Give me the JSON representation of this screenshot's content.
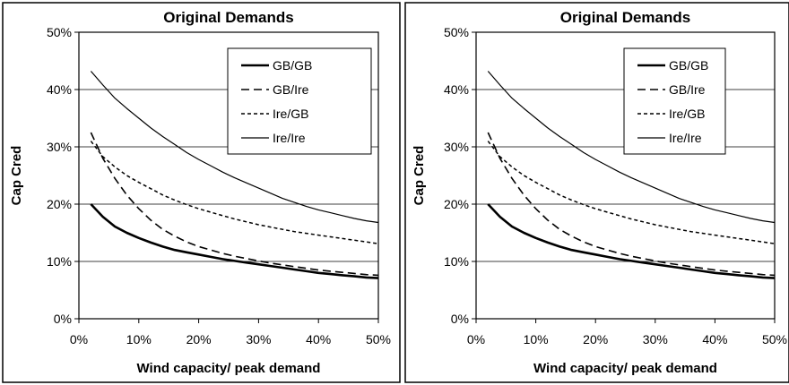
{
  "chart_data": [
    {
      "type": "line",
      "title": "Original Demands",
      "xlabel": "Wind capacity/ peak demand",
      "ylabel": "Cap Cred",
      "xlim": [
        0,
        50
      ],
      "ylim": [
        0,
        50
      ],
      "x_ticks": [
        "0%",
        "10%",
        "20%",
        "30%",
        "40%",
        "50%"
      ],
      "y_ticks": [
        "0%",
        "10%",
        "20%",
        "30%",
        "40%",
        "50%"
      ],
      "grid": "horizontal",
      "legend_position": "top-right",
      "x": [
        2,
        4,
        6,
        8,
        10,
        12,
        14,
        16,
        18,
        20,
        22,
        24,
        26,
        28,
        30,
        32,
        34,
        36,
        38,
        40,
        42,
        44,
        46,
        48,
        50
      ],
      "series": [
        {
          "name": "GB/GB",
          "style": "thick-solid",
          "values": [
            20,
            17.8,
            16.1,
            15.0,
            14.1,
            13.3,
            12.6,
            12.0,
            11.6,
            11.2,
            10.8,
            10.4,
            10.1,
            9.8,
            9.5,
            9.2,
            8.9,
            8.6,
            8.3,
            8.0,
            7.8,
            7.6,
            7.4,
            7.2,
            7.1
          ]
        },
        {
          "name": "GB/Ire",
          "style": "long-dash",
          "values": [
            32.5,
            28.0,
            24.5,
            21.6,
            19.2,
            17.2,
            15.6,
            14.4,
            13.4,
            12.6,
            12.0,
            11.4,
            10.9,
            10.5,
            10.1,
            9.7,
            9.4,
            9.1,
            8.8,
            8.5,
            8.3,
            8.1,
            7.9,
            7.7,
            7.6
          ]
        },
        {
          "name": "Ire/GB",
          "style": "short-dash",
          "values": [
            31.0,
            28.3,
            26.5,
            25.0,
            23.8,
            22.7,
            21.6,
            20.7,
            19.9,
            19.2,
            18.6,
            18.0,
            17.4,
            16.9,
            16.4,
            16.0,
            15.6,
            15.2,
            14.9,
            14.6,
            14.3,
            14.0,
            13.7,
            13.4,
            13.1
          ]
        },
        {
          "name": "Ire/Ire",
          "style": "thin-solid",
          "values": [
            43.2,
            40.8,
            38.5,
            36.7,
            35.0,
            33.3,
            31.8,
            30.4,
            29.0,
            27.8,
            26.7,
            25.6,
            24.6,
            23.7,
            22.8,
            21.9,
            21.0,
            20.3,
            19.6,
            19.0,
            18.5,
            18.0,
            17.5,
            17.1,
            16.8
          ]
        }
      ]
    },
    {
      "type": "line",
      "title": "Original Demands",
      "xlabel": "Wind capacity/ peak demand",
      "ylabel": "Cap Cred",
      "xlim": [
        0,
        50
      ],
      "ylim": [
        0,
        50
      ],
      "x_ticks": [
        "0%",
        "10%",
        "20%",
        "30%",
        "40%",
        "50%"
      ],
      "y_ticks": [
        "0%",
        "10%",
        "20%",
        "30%",
        "40%",
        "50%"
      ],
      "grid": "horizontal",
      "legend_position": "top-right",
      "x": [
        2,
        4,
        6,
        8,
        10,
        12,
        14,
        16,
        18,
        20,
        22,
        24,
        26,
        28,
        30,
        32,
        34,
        36,
        38,
        40,
        42,
        44,
        46,
        48,
        50
      ],
      "series": [
        {
          "name": "GB/GB",
          "style": "thick-solid",
          "values": [
            20,
            17.8,
            16.1,
            15.0,
            14.1,
            13.3,
            12.6,
            12.0,
            11.6,
            11.2,
            10.8,
            10.4,
            10.1,
            9.8,
            9.5,
            9.2,
            8.9,
            8.6,
            8.3,
            8.0,
            7.8,
            7.6,
            7.4,
            7.2,
            7.1
          ]
        },
        {
          "name": "GB/Ire",
          "style": "long-dash",
          "values": [
            32.5,
            28.0,
            24.5,
            21.6,
            19.2,
            17.2,
            15.6,
            14.4,
            13.4,
            12.6,
            12.0,
            11.4,
            10.9,
            10.5,
            10.1,
            9.7,
            9.4,
            9.1,
            8.8,
            8.5,
            8.3,
            8.1,
            7.9,
            7.7,
            7.6
          ]
        },
        {
          "name": "Ire/GB",
          "style": "short-dash",
          "values": [
            31.0,
            28.3,
            26.5,
            25.0,
            23.8,
            22.7,
            21.6,
            20.7,
            19.9,
            19.2,
            18.6,
            18.0,
            17.4,
            16.9,
            16.4,
            16.0,
            15.6,
            15.2,
            14.9,
            14.6,
            14.3,
            14.0,
            13.7,
            13.4,
            13.1
          ]
        },
        {
          "name": "Ire/Ire",
          "style": "thin-solid",
          "values": [
            43.2,
            40.8,
            38.5,
            36.7,
            35.0,
            33.3,
            31.8,
            30.4,
            29.0,
            27.8,
            26.7,
            25.6,
            24.6,
            23.7,
            22.8,
            21.9,
            21.0,
            20.3,
            19.6,
            19.0,
            18.5,
            18.0,
            17.5,
            17.1,
            16.8
          ]
        }
      ]
    }
  ]
}
